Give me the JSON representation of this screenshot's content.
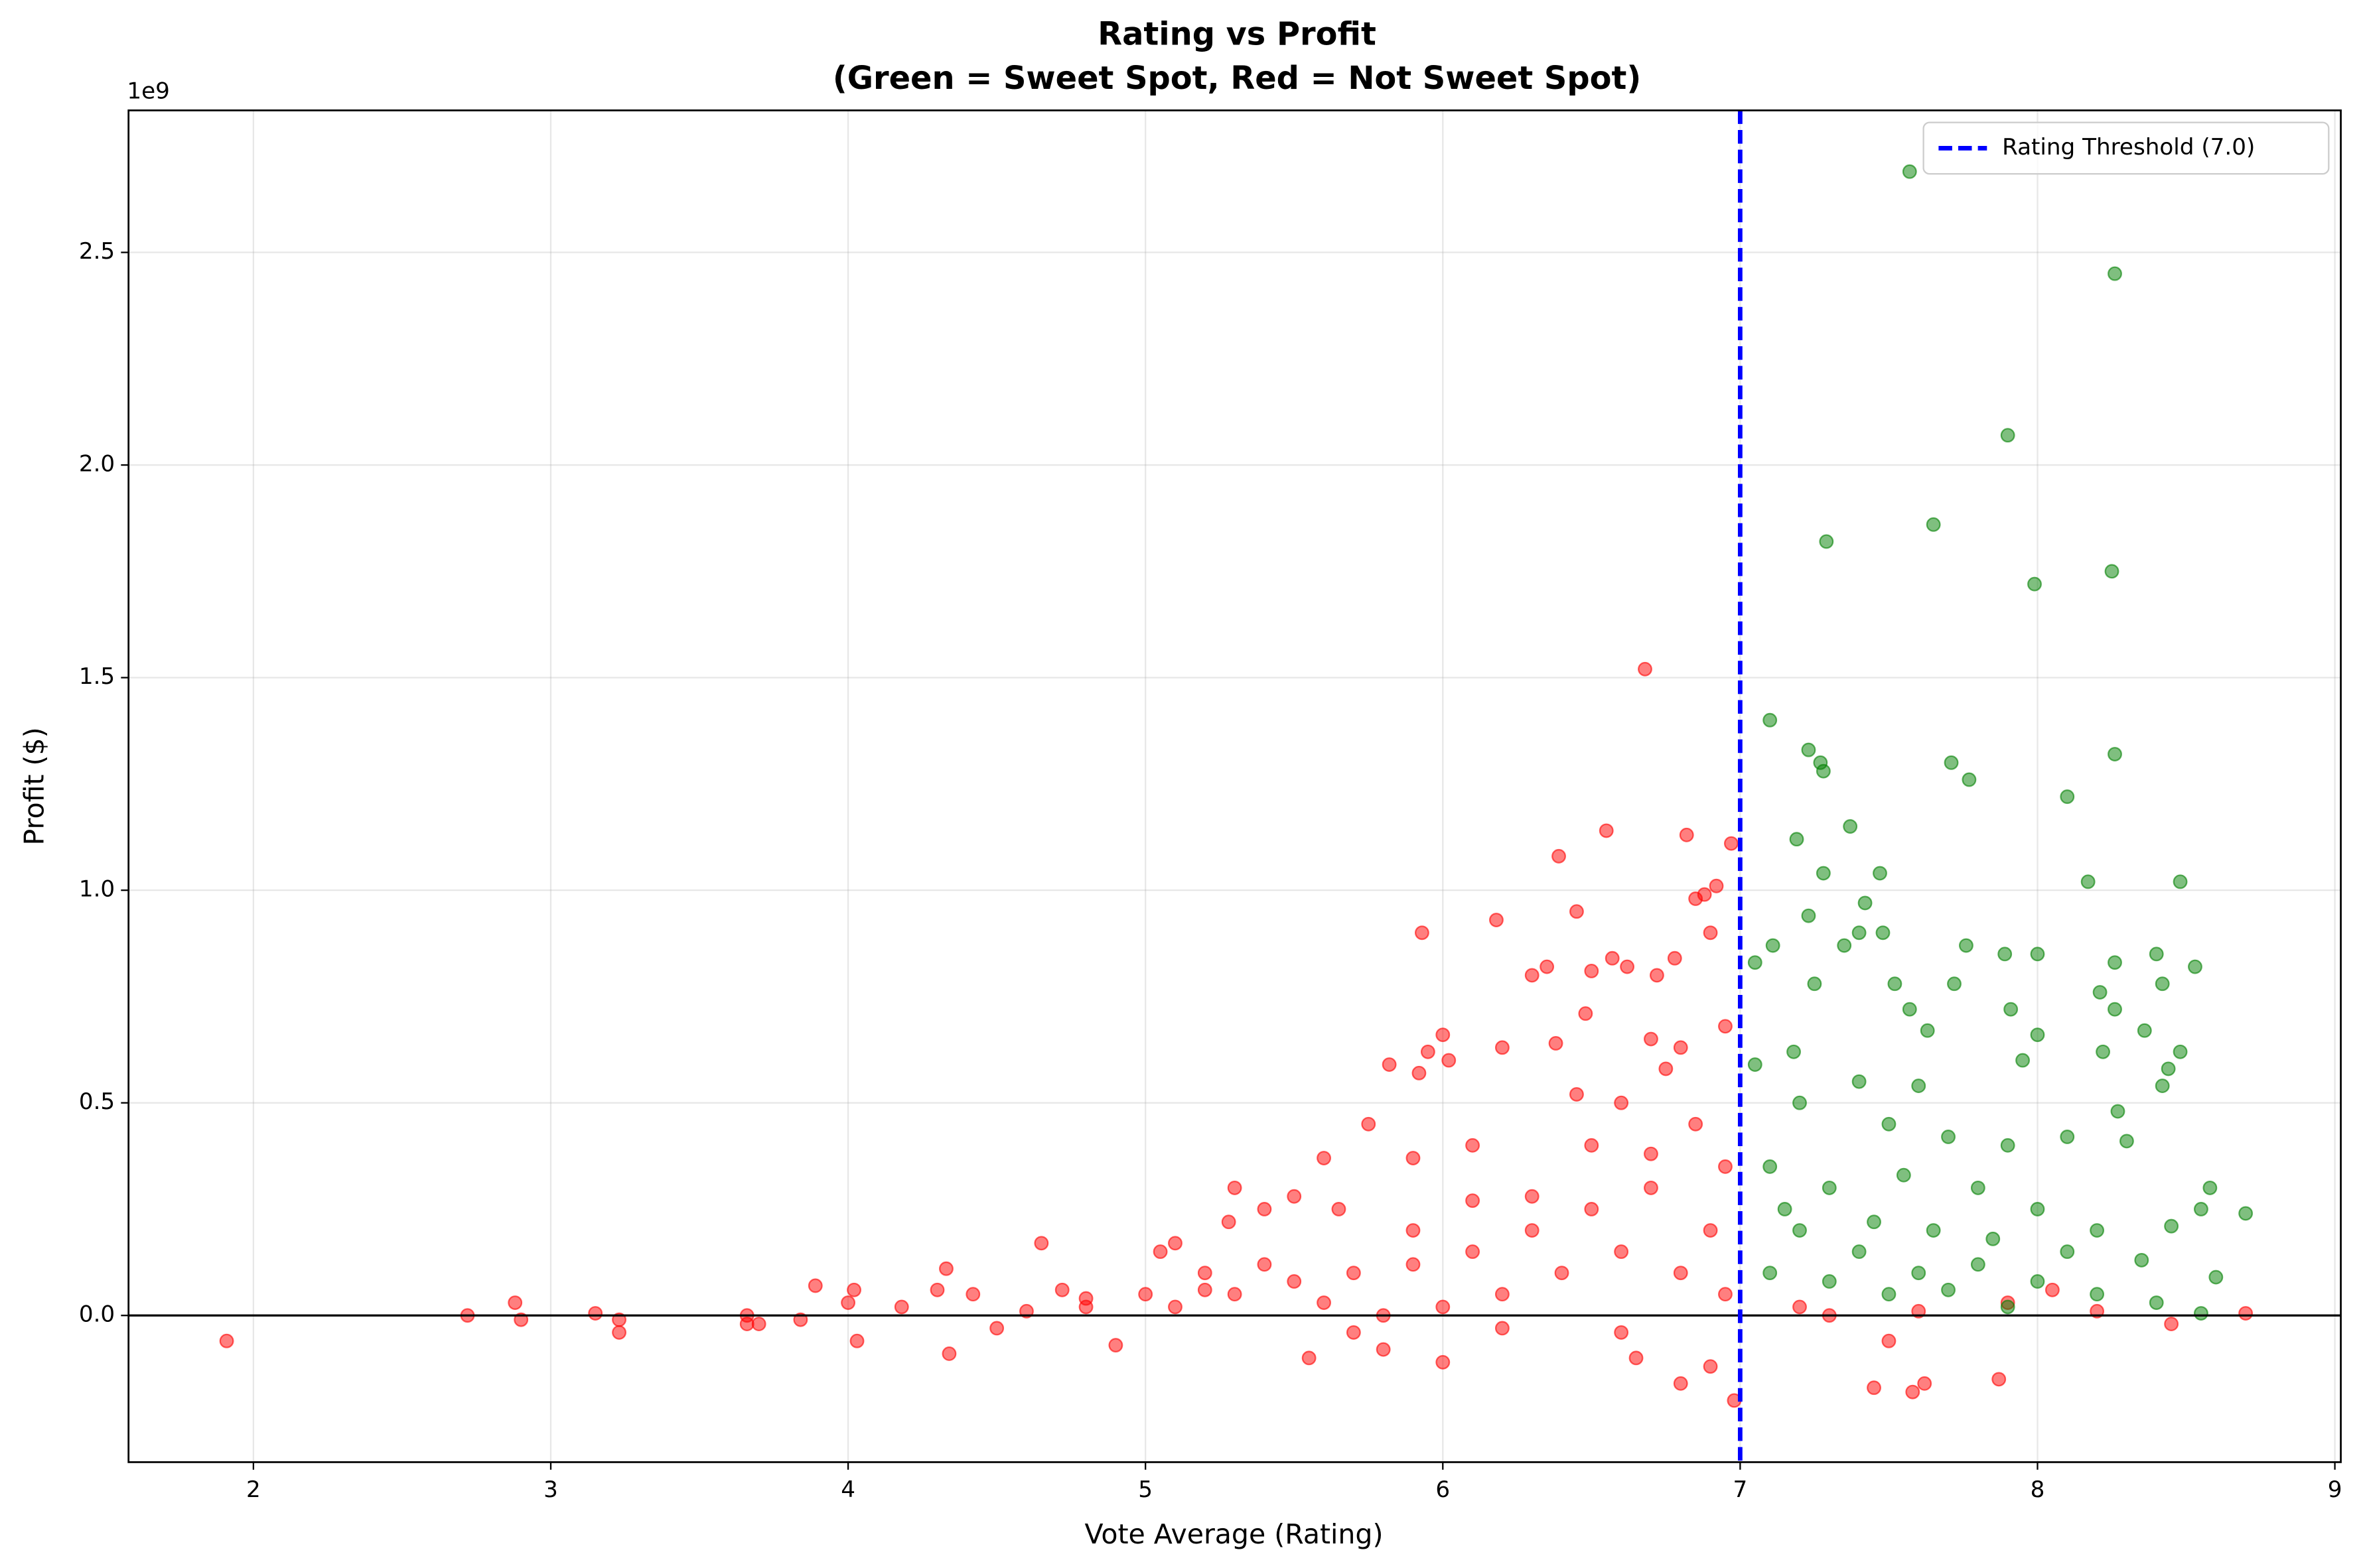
{
  "chart_data": {
    "type": "scatter",
    "title": "Rating vs Profit",
    "subtitle": "(Green = Sweet Spot, Red = Not Sweet Spot)",
    "x_label": "Vote Average (Rating)",
    "y_label": "Profit ($)",
    "y_offset_label": "1e9",
    "xlim": [
      1.58,
      9.02
    ],
    "ylim": [
      -0.345,
      2.834
    ],
    "xticks": [
      2,
      3,
      4,
      5,
      6,
      7,
      8,
      9
    ],
    "yticks": [
      {
        "value": 0,
        "label": "0.0"
      },
      0.5,
      {
        "value": 1,
        "label": "1.0"
      },
      1.5,
      {
        "value": 2,
        "label": "2.0"
      },
      2.5
    ],
    "grid": true,
    "legend": "upper right",
    "hline": 0,
    "threshold": {
      "value": 7.0,
      "label": "Rating Threshold (7.0)",
      "color": "blue"
    },
    "series": [
      {
        "color": "red",
        "x": [
          1.91,
          2.72,
          2.88,
          2.9,
          3.15,
          3.23,
          3.23,
          3.66,
          3.66,
          3.7,
          3.84,
          3.89,
          4.0,
          4.02,
          4.03,
          4.18,
          4.3,
          4.33,
          4.34,
          4.42,
          4.5,
          4.65,
          4.72,
          4.8,
          4.9,
          5.0,
          5.05,
          5.1,
          5.2,
          5.28,
          5.3,
          5.4,
          5.5,
          5.6,
          5.65,
          5.75,
          5.82,
          5.9,
          5.92,
          5.93,
          5.95,
          6.0,
          6.02,
          6.0,
          6.1,
          6.18,
          6.2,
          6.3,
          6.35,
          6.38,
          6.39,
          6.45,
          6.48,
          6.5,
          6.55,
          6.57,
          6.62,
          6.68,
          6.7,
          6.72,
          6.75,
          6.78,
          6.82,
          6.85,
          6.88,
          6.92,
          6.9,
          6.97,
          6.95,
          6.8,
          6.98,
          6.9,
          6.8,
          6.65,
          5.55,
          5.8,
          7.45,
          7.58,
          7.62,
          7.87,
          8.7,
          8.45,
          8.05,
          7.3,
          7.5,
          8.2,
          5.1,
          5.3,
          5.5,
          5.7,
          5.9,
          6.1,
          6.3,
          6.5,
          6.7,
          6.9,
          6.2,
          6.4,
          6.6,
          6.8,
          5.6,
          5.8,
          6.0,
          6.5,
          6.6,
          6.45,
          6.7,
          6.85,
          6.95,
          6.3,
          6.1,
          5.9,
          5.4,
          5.2,
          4.8,
          4.6,
          6.95,
          6.6,
          6.2,
          5.7,
          7.2,
          7.6,
          7.9
        ],
        "values": [
          -0.06,
          0,
          0.03,
          -0.01,
          0.005,
          -0.04,
          -0.01,
          -0.02,
          0,
          -0.02,
          -0.01,
          0.07,
          0.03,
          0.06,
          -0.06,
          0.02,
          0.06,
          0.11,
          -0.09,
          0.05,
          -0.03,
          0.17,
          0.06,
          0.02,
          -0.07,
          0.05,
          0.15,
          0.17,
          0.1,
          0.22,
          0.3,
          0.25,
          0.28,
          0.37,
          0.25,
          0.45,
          0.59,
          0.37,
          0.57,
          0.9,
          0.62,
          0.66,
          0.6,
          -0.11,
          0.4,
          0.93,
          0.63,
          0.8,
          0.82,
          0.64,
          1.08,
          0.95,
          0.71,
          0.81,
          1.14,
          0.84,
          0.82,
          1.52,
          0.65,
          0.8,
          0.58,
          0.84,
          1.13,
          0.98,
          0.99,
          1.01,
          0.9,
          1.11,
          0.68,
          0.63,
          -0.2,
          -0.12,
          -0.16,
          -0.1,
          -0.1,
          -0.08,
          -0.17,
          -0.18,
          -0.16,
          -0.15,
          0.005,
          -0.02,
          0.06,
          0,
          -0.06,
          0.01,
          0.02,
          0.05,
          0.08,
          0.1,
          0.12,
          0.15,
          0.2,
          0.25,
          0.3,
          0.2,
          0.05,
          0.1,
          0.15,
          0.1,
          0.03,
          0,
          0.02,
          0.4,
          0.5,
          0.52,
          0.38,
          0.45,
          0.35,
          0.28,
          0.27,
          0.2,
          0.12,
          0.06,
          0.04,
          0.01,
          0.05,
          -0.04,
          -0.03,
          -0.04,
          0.02,
          0.01,
          0.03
        ]
      },
      {
        "color": "green",
        "x": [
          7.57,
          8.26,
          7.9,
          7.65,
          7.29,
          7.99,
          8.25,
          7.1,
          7.23,
          7.27,
          7.28,
          7.71,
          7.77,
          8.26,
          8.1,
          7.37,
          7.19,
          7.28,
          7.47,
          8.17,
          8.48,
          7.42,
          7.23,
          7.4,
          7.48,
          7.05,
          7.11,
          7.35,
          7.76,
          7.89,
          8.0,
          8.26,
          8.4,
          8.53,
          7.25,
          7.52,
          7.72,
          8.42,
          8.21,
          7.57,
          7.91,
          8.26,
          8.36,
          7.63,
          8.0,
          7.18,
          8.22,
          8.48,
          7.05,
          7.95,
          8.44,
          7.4,
          7.6,
          8.42,
          8.27,
          7.2,
          7.5,
          7.7,
          7.9,
          8.1,
          8.3,
          7.1,
          7.3,
          7.55,
          7.8,
          8.0,
          8.2,
          8.45,
          8.58,
          8.55,
          8.7,
          8.6,
          8.55,
          7.2,
          7.4,
          7.6,
          7.8,
          8.0,
          8.2,
          8.4,
          7.1,
          7.3,
          7.5,
          7.7,
          7.9,
          7.15,
          7.45,
          7.65,
          7.85,
          8.1,
          8.35
        ],
        "values": [
          2.69,
          2.45,
          2.07,
          1.86,
          1.82,
          1.72,
          1.75,
          1.4,
          1.33,
          1.3,
          1.28,
          1.3,
          1.26,
          1.32,
          1.22,
          1.15,
          1.12,
          1.04,
          1.04,
          1.02,
          1.02,
          0.97,
          0.94,
          0.9,
          0.9,
          0.83,
          0.87,
          0.87,
          0.87,
          0.85,
          0.85,
          0.83,
          0.85,
          0.82,
          0.78,
          0.78,
          0.78,
          0.78,
          0.76,
          0.72,
          0.72,
          0.72,
          0.67,
          0.67,
          0.66,
          0.62,
          0.62,
          0.62,
          0.59,
          0.6,
          0.58,
          0.55,
          0.54,
          0.54,
          0.48,
          0.5,
          0.45,
          0.42,
          0.4,
          0.42,
          0.41,
          0.35,
          0.3,
          0.33,
          0.3,
          0.25,
          0.2,
          0.21,
          0.3,
          0.25,
          0.24,
          0.09,
          0.005,
          0.2,
          0.15,
          0.1,
          0.12,
          0.08,
          0.05,
          0.03,
          0.1,
          0.08,
          0.05,
          0.06,
          0.02,
          0.25,
          0.22,
          0.2,
          0.18,
          0.15,
          0.13
        ]
      }
    ]
  }
}
